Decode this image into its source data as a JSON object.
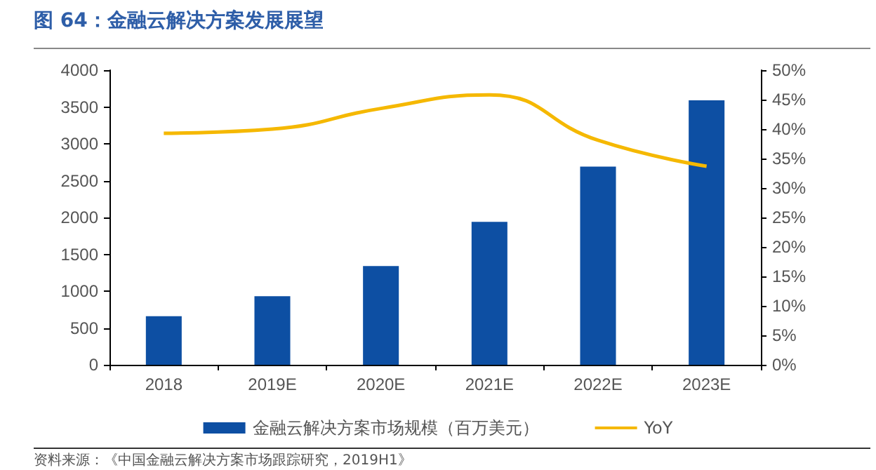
{
  "chart_data": {
    "type": "bar",
    "title": "图 64：金融云解决方案发展展望",
    "categories": [
      "2018",
      "2019E",
      "2020E",
      "2021E",
      "2022E",
      "2023E"
    ],
    "series": [
      {
        "name": "金融云解决方案市场规模（百万美元）",
        "color": "#0d4fa3",
        "values": [
          660,
          930,
          1340,
          1940,
          2690,
          3590
        ]
      },
      {
        "name": "YoY",
        "type": "line",
        "axis": "y2",
        "color": "#f5b800",
        "values": [
          39.3,
          40,
          43.5,
          45.8,
          38.1,
          33.7
        ]
      }
    ],
    "ylim": [
      0,
      4000
    ],
    "yticks": [
      0,
      500,
      1000,
      1500,
      2000,
      2500,
      3000,
      3500,
      4000
    ],
    "y2lim": [
      0,
      50
    ],
    "y2ticks": [
      {
        "value": 0,
        "label": "0%"
      },
      {
        "value": 5,
        "label": "5%"
      },
      {
        "value": 10,
        "label": "10%"
      },
      {
        "value": 15,
        "label": "15%"
      },
      {
        "value": 20,
        "label": "20%"
      },
      {
        "value": 25,
        "label": "25%"
      },
      {
        "value": 30,
        "label": "30%"
      },
      {
        "value": 35,
        "label": "35%"
      },
      {
        "value": 40,
        "label": "40%"
      },
      {
        "value": 45,
        "label": "45%"
      },
      {
        "value": 50,
        "label": "50%"
      }
    ],
    "annotations": [
      "资料来源：《中国金融云解决方案市场跟踪研究，2019H1》"
    ],
    "grid": false,
    "legend": "bottom",
    "marker": "none",
    "line_style": "solid"
  }
}
